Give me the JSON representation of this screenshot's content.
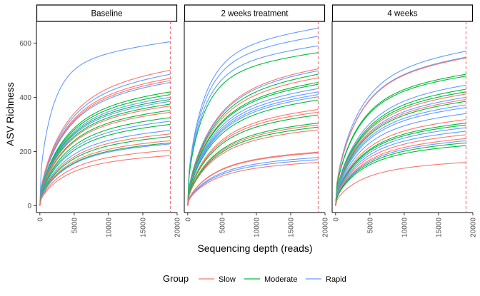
{
  "chart_data": {
    "type": "line",
    "xlabel": "Sequencing depth (reads)",
    "ylabel": "ASV Richness",
    "xlim": [
      -500,
      20000
    ],
    "ylim": [
      -25,
      680
    ],
    "x_ticks": [
      "0",
      "5000",
      "10000",
      "15000",
      "20000"
    ],
    "y_ticks": [
      "0",
      "200",
      "400",
      "600"
    ],
    "rarefaction_depth": 19000,
    "legend": {
      "title": "Group",
      "position": "bottom",
      "items": [
        {
          "label": "Slow",
          "color": "#F8766D"
        },
        {
          "label": "Moderate",
          "color": "#00BA38"
        },
        {
          "label": "Rapid",
          "color": "#619CFF"
        }
      ]
    },
    "panels": [
      {
        "label": "Baseline",
        "curves": [
          {
            "group": "Rapid",
            "final": 605,
            "shape": 0.9
          },
          {
            "group": "Rapid",
            "final": 485,
            "shape": 0.5
          },
          {
            "group": "Slow",
            "final": 500,
            "shape": 0.5
          },
          {
            "group": "Slow",
            "final": 470,
            "shape": 0.5
          },
          {
            "group": "Slow",
            "final": 462,
            "shape": 0.5
          },
          {
            "group": "Rapid",
            "final": 455,
            "shape": 0.5
          },
          {
            "group": "Moderate",
            "final": 420,
            "shape": 0.5
          },
          {
            "group": "Moderate",
            "final": 410,
            "shape": 0.5
          },
          {
            "group": "Rapid",
            "final": 400,
            "shape": 0.5
          },
          {
            "group": "Moderate",
            "final": 392,
            "shape": 0.5
          },
          {
            "group": "Rapid",
            "final": 385,
            "shape": 0.5
          },
          {
            "group": "Moderate",
            "final": 375,
            "shape": 0.5
          },
          {
            "group": "Slow",
            "final": 368,
            "shape": 0.5
          },
          {
            "group": "Moderate",
            "final": 352,
            "shape": 0.5
          },
          {
            "group": "Slow",
            "final": 345,
            "shape": 0.5
          },
          {
            "group": "Moderate",
            "final": 325,
            "shape": 0.5
          },
          {
            "group": "Rapid",
            "final": 312,
            "shape": 0.5
          },
          {
            "group": "Moderate",
            "final": 300,
            "shape": 0.5
          },
          {
            "group": "Rapid",
            "final": 278,
            "shape": 0.5
          },
          {
            "group": "Slow",
            "final": 265,
            "shape": 0.5
          },
          {
            "group": "Moderate",
            "final": 255,
            "shape": 0.5
          },
          {
            "group": "Slow",
            "final": 240,
            "shape": 0.5
          },
          {
            "group": "Moderate",
            "final": 232,
            "shape": 0.5
          },
          {
            "group": "Rapid",
            "final": 228,
            "shape": 0.5
          },
          {
            "group": "Slow",
            "final": 205,
            "shape": 0.5
          },
          {
            "group": "Slow",
            "final": 185,
            "shape": 0.5
          }
        ]
      },
      {
        "label": "2 weeks treatment",
        "curves": [
          {
            "group": "Rapid",
            "final": 655,
            "shape": 0.8
          },
          {
            "group": "Rapid",
            "final": 625,
            "shape": 0.8
          },
          {
            "group": "Rapid",
            "final": 590,
            "shape": 0.8
          },
          {
            "group": "Moderate",
            "final": 565,
            "shape": 0.8
          },
          {
            "group": "Slow",
            "final": 505,
            "shape": 0.5
          },
          {
            "group": "Rapid",
            "final": 498,
            "shape": 0.5
          },
          {
            "group": "Moderate",
            "final": 485,
            "shape": 0.5
          },
          {
            "group": "Slow",
            "final": 472,
            "shape": 0.5
          },
          {
            "group": "Moderate",
            "final": 455,
            "shape": 0.5
          },
          {
            "group": "Moderate",
            "final": 448,
            "shape": 0.5
          },
          {
            "group": "Rapid",
            "final": 432,
            "shape": 0.5
          },
          {
            "group": "Rapid",
            "final": 420,
            "shape": 0.5
          },
          {
            "group": "Rapid",
            "final": 410,
            "shape": 0.5
          },
          {
            "group": "Rapid",
            "final": 402,
            "shape": 0.5
          },
          {
            "group": "Moderate",
            "final": 390,
            "shape": 0.5
          },
          {
            "group": "Slow",
            "final": 355,
            "shape": 0.5
          },
          {
            "group": "Slow",
            "final": 345,
            "shape": 0.5
          },
          {
            "group": "Moderate",
            "final": 335,
            "shape": 0.5
          },
          {
            "group": "Moderate",
            "final": 305,
            "shape": 0.5
          },
          {
            "group": "Slow",
            "final": 298,
            "shape": 0.5
          },
          {
            "group": "Moderate",
            "final": 290,
            "shape": 0.5
          },
          {
            "group": "Slow",
            "final": 280,
            "shape": 0.5
          },
          {
            "group": "Slow",
            "final": 198,
            "shape": 0.5
          },
          {
            "group": "Slow",
            "final": 195,
            "shape": 0.5
          },
          {
            "group": "Rapid",
            "final": 178,
            "shape": 0.5
          },
          {
            "group": "Rapid",
            "final": 170,
            "shape": 0.5
          },
          {
            "group": "Slow",
            "final": 160,
            "shape": 0.5
          }
        ]
      },
      {
        "label": "4 weeks",
        "curves": [
          {
            "group": "Rapid",
            "final": 570,
            "shape": 0.6
          },
          {
            "group": "Rapid",
            "final": 548,
            "shape": 0.6
          },
          {
            "group": "Slow",
            "final": 545,
            "shape": 0.6
          },
          {
            "group": "Moderate",
            "final": 485,
            "shape": 0.6
          },
          {
            "group": "Moderate",
            "final": 478,
            "shape": 0.6
          },
          {
            "group": "Rapid",
            "final": 445,
            "shape": 0.5
          },
          {
            "group": "Moderate",
            "final": 430,
            "shape": 0.5
          },
          {
            "group": "Moderate",
            "final": 420,
            "shape": 0.5
          },
          {
            "group": "Slow",
            "final": 412,
            "shape": 0.5
          },
          {
            "group": "Rapid",
            "final": 400,
            "shape": 0.5
          },
          {
            "group": "Slow",
            "final": 392,
            "shape": 0.5
          },
          {
            "group": "Moderate",
            "final": 385,
            "shape": 0.5
          },
          {
            "group": "Rapid",
            "final": 372,
            "shape": 0.5
          },
          {
            "group": "Rapid",
            "final": 362,
            "shape": 0.5
          },
          {
            "group": "Rapid",
            "final": 340,
            "shape": 0.5
          },
          {
            "group": "Slow",
            "final": 318,
            "shape": 0.5
          },
          {
            "group": "Moderate",
            "final": 305,
            "shape": 0.5
          },
          {
            "group": "Moderate",
            "final": 298,
            "shape": 0.5
          },
          {
            "group": "Rapid",
            "final": 288,
            "shape": 0.5
          },
          {
            "group": "Rapid",
            "final": 275,
            "shape": 0.5
          },
          {
            "group": "Slow",
            "final": 262,
            "shape": 0.5
          },
          {
            "group": "Slow",
            "final": 248,
            "shape": 0.5
          },
          {
            "group": "Rapid",
            "final": 240,
            "shape": 0.5
          },
          {
            "group": "Moderate",
            "final": 232,
            "shape": 0.5
          },
          {
            "group": "Moderate",
            "final": 222,
            "shape": 0.5
          },
          {
            "group": "Slow",
            "final": 160,
            "shape": 0.5
          }
        ]
      }
    ]
  }
}
